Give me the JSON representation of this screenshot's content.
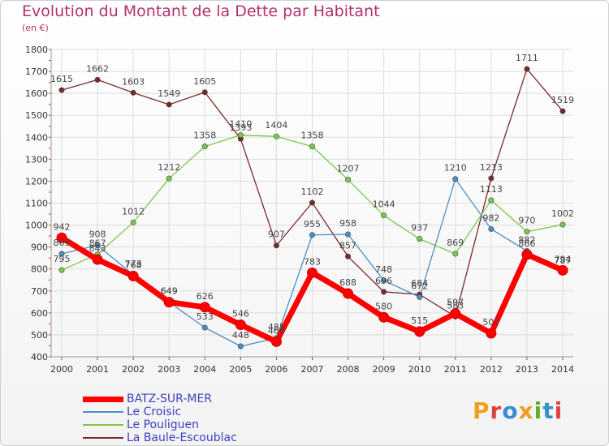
{
  "header": {
    "title": "Evolution du Montant de la Dette par Habitant",
    "subtitle": "(en €)"
  },
  "logo": {
    "text": "Proxiti",
    "colors": [
      "#f0a020",
      "#e04040",
      "#3a8fd0",
      "#f0a020",
      "#60b030",
      "#3a8fd0",
      "#e04040"
    ]
  },
  "chart_data": {
    "type": "line",
    "title": "Evolution du Montant de la Dette par Habitant",
    "subtitle": "(en €)",
    "x": [
      2000,
      2001,
      2002,
      2003,
      2004,
      2005,
      2006,
      2007,
      2008,
      2009,
      2010,
      2011,
      2012,
      2013,
      2014
    ],
    "ylim": [
      400,
      1800
    ],
    "yticks": [
      400,
      500,
      600,
      700,
      800,
      900,
      1000,
      1100,
      1200,
      1300,
      1400,
      1500,
      1600,
      1700,
      1800
    ],
    "grid": true,
    "legend_position": "bottom-left",
    "series": [
      {
        "name": "BATZ-SUR-MER",
        "color": "#ff0000",
        "values": [
          942,
          843,
          768,
          649,
          626,
          546,
          469,
          783,
          688,
          580,
          515,
          597,
          507,
          866,
          794
        ]
      },
      {
        "name": "Le Croisic",
        "color": "#4a90c8",
        "values": [
          869,
          908,
          773,
          649,
          533,
          448,
          485,
          955,
          958,
          748,
          672,
          1210,
          982,
          882,
          787
        ]
      },
      {
        "name": "Le Pouliguen",
        "color": "#7ac84a",
        "values": [
          795,
          867,
          1012,
          1212,
          1358,
          1410,
          1404,
          1358,
          1207,
          1044,
          937,
          869,
          1113,
          970,
          1002
        ]
      },
      {
        "name": "La Baule-Escoublac",
        "color": "#7a2a2a",
        "values": [
          1615,
          1662,
          1603,
          1549,
          1605,
          1393,
          907,
          1102,
          857,
          696,
          684,
          583,
          1213,
          1711,
          1519
        ]
      }
    ]
  }
}
